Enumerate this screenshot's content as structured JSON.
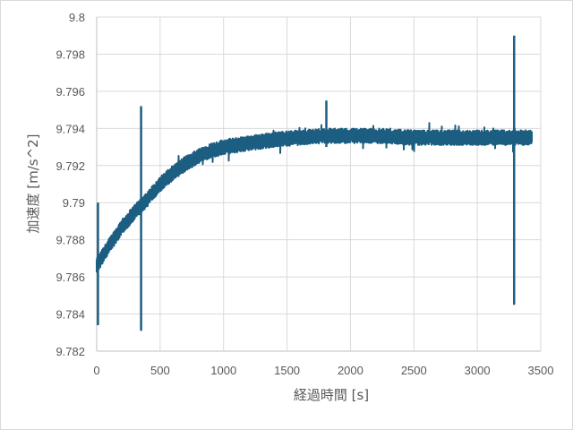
{
  "chart_data": {
    "type": "line",
    "title": "",
    "xlabel": "経過時間 [s]",
    "ylabel": "加速度 [m/s^2]",
    "xlim": [
      0,
      3500
    ],
    "ylim": [
      9.782,
      9.8
    ],
    "x_ticks": [
      "0",
      "500",
      "1000",
      "1500",
      "2000",
      "2500",
      "3000",
      "3500"
    ],
    "y_ticks": [
      "9.8",
      "9.798",
      "9.796",
      "9.794",
      "9.792",
      "9.79",
      "9.788",
      "9.786",
      "9.784",
      "9.782"
    ],
    "grid": true,
    "legend": "none",
    "series": [
      {
        "name": "加速度",
        "color": "#1b5e82",
        "trend_points": {
          "x": [
            0,
            100,
            200,
            300,
            400,
            500,
            600,
            700,
            800,
            900,
            1000,
            1200,
            1400,
            1600,
            1800,
            2000,
            2200,
            2500,
            2800,
            3000,
            3200,
            3430
          ],
          "y": [
            9.7866,
            9.7877,
            9.7887,
            9.7895,
            9.7902,
            9.791,
            9.7916,
            9.7921,
            9.7925,
            9.7928,
            9.793,
            9.7932,
            9.7934,
            9.7935,
            9.7936,
            9.7936,
            9.7936,
            9.7935,
            9.7935,
            9.7935,
            9.7935,
            9.7935
          ]
        },
        "noise_band": 0.0008,
        "spikes": [
          {
            "x": 10,
            "min": 9.7834,
            "max": 9.79
          },
          {
            "x": 350,
            "min": 9.7831,
            "max": 9.7952
          },
          {
            "x": 1810,
            "min": 9.793,
            "max": 9.7955
          },
          {
            "x": 3290,
            "min": 9.7845,
            "max": 9.799
          }
        ],
        "x_end": 3430
      }
    ]
  }
}
